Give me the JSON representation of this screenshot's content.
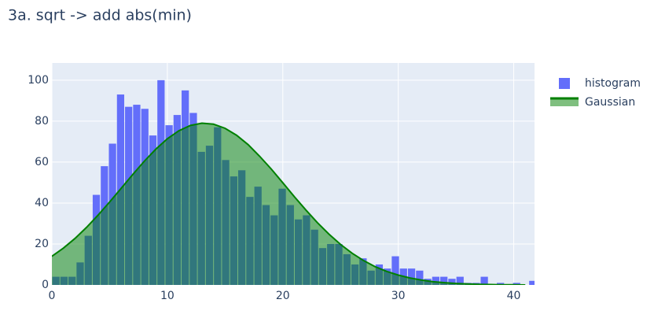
{
  "chart_data": {
    "type": "histogram",
    "title": "3a. sqrt -> add abs(min)",
    "xlim": [
      0,
      41.8
    ],
    "ylim": [
      0,
      108.4
    ],
    "xticks": [
      0,
      10,
      20,
      30,
      40
    ],
    "yticks": [
      0,
      20,
      40,
      60,
      80,
      100
    ],
    "grid": true,
    "legend": "right",
    "series": [
      {
        "name": "histogram",
        "type": "histogram",
        "color": "#636efa",
        "bins": [
          0,
          0.7,
          1.4,
          2.1,
          2.8,
          3.5,
          4.2,
          4.9,
          5.6,
          6.3,
          7,
          7.7,
          8.4,
          9.1,
          9.8,
          10.5,
          11.2,
          11.9,
          12.6,
          13.3,
          14,
          14.7,
          15.4,
          16.1,
          16.8,
          17.5,
          18.2,
          18.9,
          19.6,
          20.3,
          21,
          21.7,
          22.4,
          23.1,
          23.8,
          24.5,
          25.2,
          25.9,
          26.6,
          27.3,
          28,
          28.7,
          29.4,
          30.1,
          30.8,
          31.5,
          32.2,
          32.9,
          33.6,
          34.3,
          35,
          35.7,
          36.4,
          37.1,
          37.8,
          38.5,
          39.2,
          39.9,
          40.6,
          41.3,
          42
        ],
        "values": [
          4,
          4,
          4,
          11,
          24,
          44,
          58,
          69,
          93,
          87,
          88,
          86,
          73,
          100,
          78,
          83,
          95,
          84,
          65,
          68,
          77,
          61,
          53,
          56,
          43,
          48,
          39,
          34,
          47,
          39,
          32,
          34,
          27,
          18,
          20,
          20,
          15,
          10,
          13,
          7,
          10,
          8,
          14,
          8,
          8,
          7,
          3,
          4,
          4,
          3,
          4,
          1,
          1,
          4,
          0,
          1,
          0,
          1,
          0,
          2
        ]
      },
      {
        "name": "Gaussian",
        "type": "area",
        "color": "#008000",
        "fill": "rgba(0,128,0,0.5)",
        "x": [
          0,
          1,
          2,
          3,
          4,
          5,
          6,
          7,
          8,
          9,
          10,
          11,
          12,
          13,
          14,
          15,
          16,
          17,
          18,
          19,
          20,
          21,
          22,
          23,
          24,
          25,
          26,
          27,
          28,
          29,
          30,
          31,
          32,
          33,
          34,
          35,
          36,
          37,
          38,
          39,
          40,
          41
        ],
        "values": [
          14.0,
          18.0,
          22.7,
          28.1,
          34.1,
          40.5,
          47.2,
          53.9,
          60.4,
          66.3,
          71.4,
          75.3,
          77.9,
          79.0,
          78.5,
          76.5,
          73.1,
          68.5,
          62.8,
          56.6,
          49.9,
          43.1,
          36.6,
          30.4,
          24.8,
          19.8,
          15.5,
          11.9,
          8.9,
          6.6,
          4.8,
          3.4,
          2.4,
          1.6,
          1.1,
          0.7,
          0.5,
          0.3,
          0.2,
          0.1,
          0.1,
          0.0
        ]
      }
    ]
  }
}
